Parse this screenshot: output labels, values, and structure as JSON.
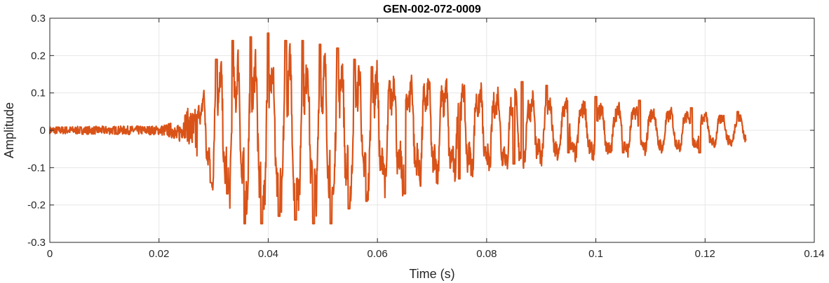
{
  "chart_data": {
    "type": "line",
    "title": "GEN-002-072-0009",
    "xlabel": "Time (s)",
    "ylabel": "Amplitude",
    "xlim": [
      0,
      0.14
    ],
    "ylim": [
      -0.3,
      0.3
    ],
    "x_ticks": [
      0,
      0.02,
      0.04,
      0.06,
      0.08,
      0.1,
      0.12,
      0.14
    ],
    "x_tick_labels": [
      "0",
      "0.02",
      "0.04",
      "0.06",
      "0.08",
      "0.1",
      "0.12",
      "0.14"
    ],
    "y_ticks": [
      -0.3,
      -0.2,
      -0.1,
      0,
      0.1,
      0.2,
      0.3
    ],
    "y_tick_labels": [
      "-0.3",
      "-0.2",
      "-0.1",
      "0",
      "0.1",
      "0.2",
      "0.3"
    ],
    "grid": true,
    "line_color": "#D95319",
    "x_end": 0.1275,
    "onset": 0.027,
    "series": [
      {
        "envelope": [
          [
            0.0,
            0.01
          ],
          [
            0.02,
            0.012
          ],
          [
            0.0245,
            0.03
          ],
          [
            0.027,
            0.08
          ],
          [
            0.03,
            0.19
          ],
          [
            0.034,
            0.23
          ],
          [
            0.04,
            0.255
          ],
          [
            0.046,
            0.24
          ],
          [
            0.052,
            0.23
          ],
          [
            0.06,
            0.2
          ],
          [
            0.07,
            0.17
          ],
          [
            0.08,
            0.14
          ],
          [
            0.09,
            0.115
          ],
          [
            0.1,
            0.095
          ],
          [
            0.11,
            0.08
          ],
          [
            0.12,
            0.06
          ],
          [
            0.1275,
            0.05
          ]
        ],
        "peaks_top": [
          [
            0.0305,
            0.19
          ],
          [
            0.0335,
            0.24
          ],
          [
            0.0368,
            0.25
          ],
          [
            0.04,
            0.26
          ],
          [
            0.0432,
            0.24
          ],
          [
            0.0463,
            0.24
          ],
          [
            0.0495,
            0.23
          ],
          [
            0.0527,
            0.22
          ],
          [
            0.0558,
            0.19
          ],
          [
            0.059,
            0.17
          ],
          [
            0.075,
            0.14
          ],
          [
            0.0865,
            0.13
          ],
          [
            0.091,
            0.12
          ],
          [
            0.1,
            0.09
          ],
          [
            0.108,
            0.08
          ],
          [
            0.1175,
            0.06
          ],
          [
            0.126,
            0.05
          ]
        ],
        "troughs": [
          [
            0.0295,
            -0.14
          ],
          [
            0.0325,
            -0.17
          ],
          [
            0.0357,
            -0.25
          ],
          [
            0.0388,
            -0.25
          ],
          [
            0.042,
            -0.23
          ],
          [
            0.045,
            -0.24
          ],
          [
            0.0483,
            -0.25
          ],
          [
            0.0515,
            -0.25
          ],
          [
            0.0548,
            -0.21
          ],
          [
            0.058,
            -0.19
          ],
          [
            0.065,
            -0.17
          ],
          [
            0.075,
            -0.13
          ],
          [
            0.085,
            -0.09
          ],
          [
            0.095,
            -0.06
          ],
          [
            0.105,
            -0.06
          ],
          [
            0.119,
            -0.06
          ]
        ],
        "base_freq_hz": 315
      }
    ]
  }
}
